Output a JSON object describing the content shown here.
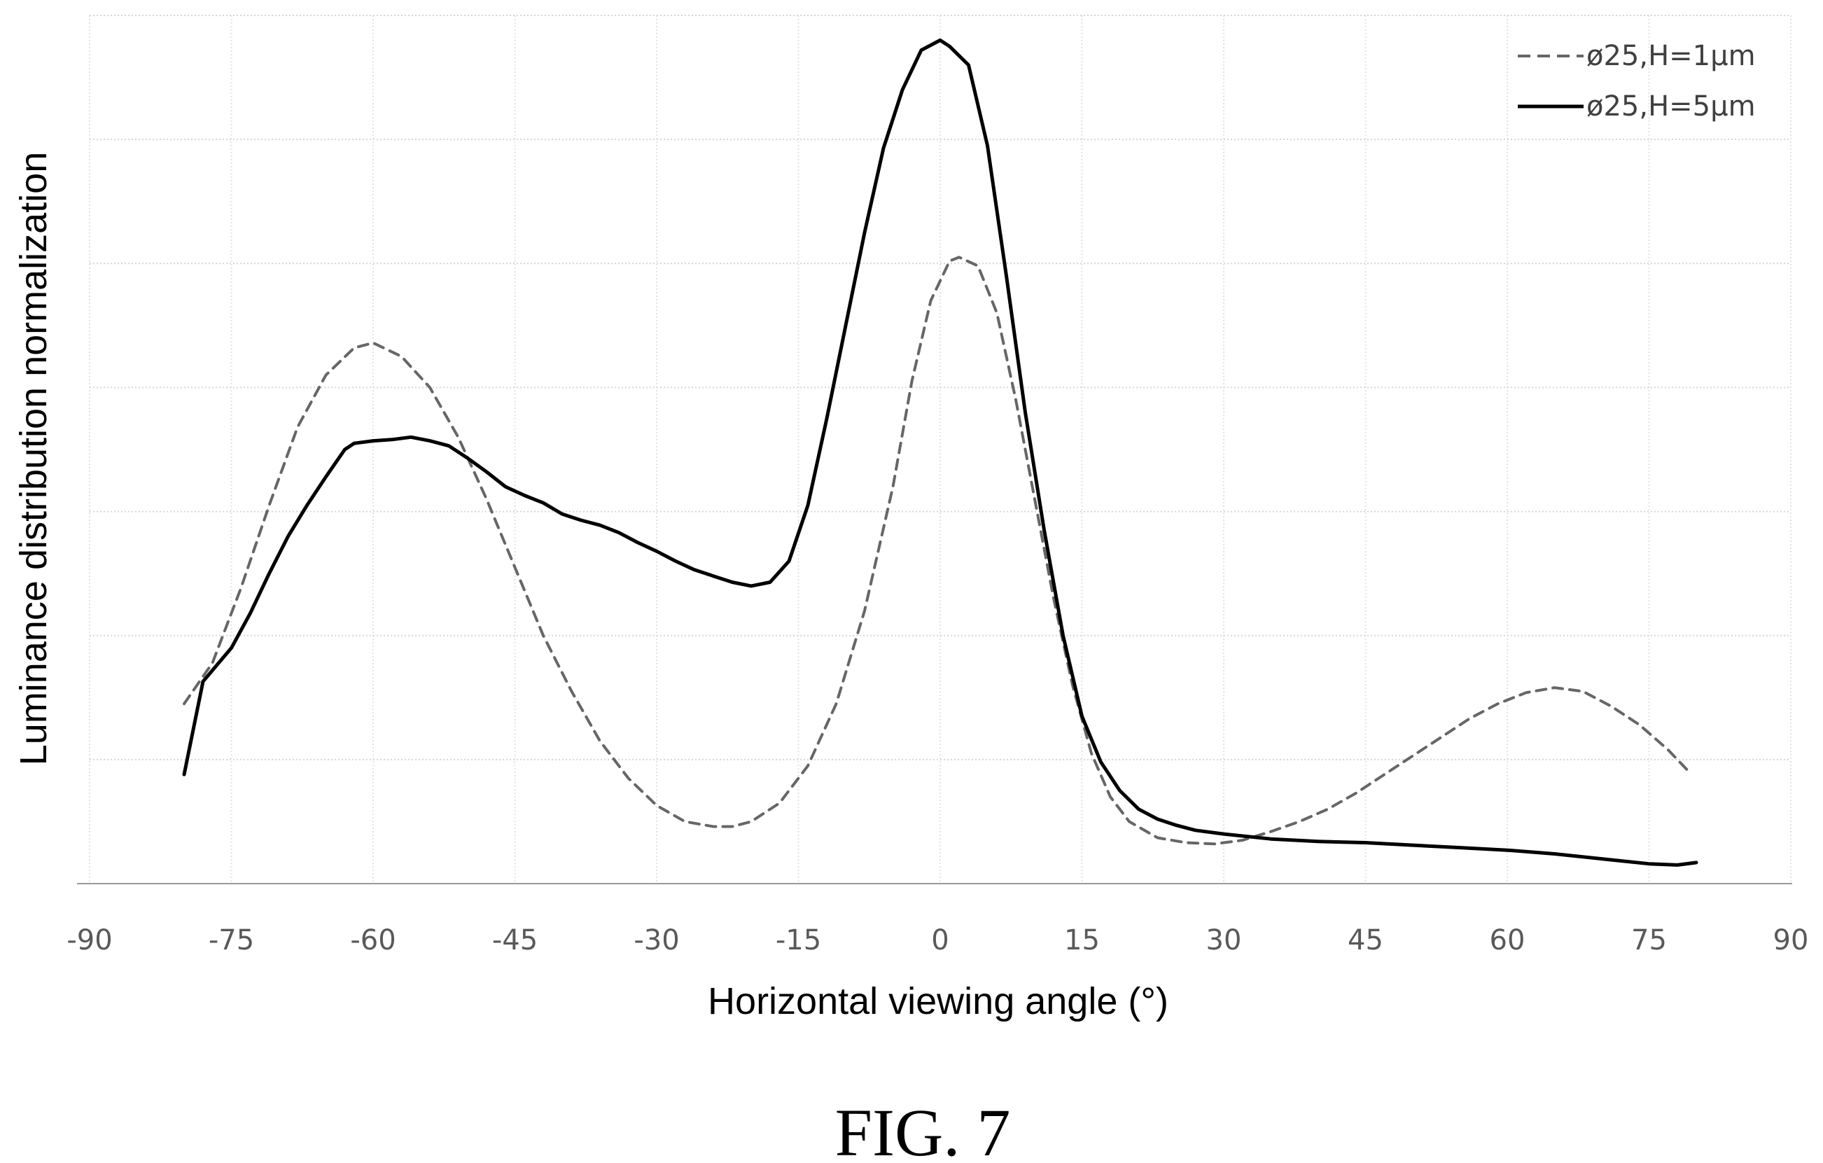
{
  "figure": {
    "caption": "FIG. 7"
  },
  "chart_data": {
    "type": "line",
    "title": "",
    "xlabel": "Horizontal viewing angle (°)",
    "ylabel": "Luminance distribution normalization",
    "xlim": [
      -90,
      90
    ],
    "ylim": [
      0,
      7
    ],
    "xticks": [
      -90,
      -75,
      -60,
      -45,
      -30,
      -15,
      0,
      15,
      30,
      45,
      60,
      75,
      90
    ],
    "xtick_labels": [
      "-90",
      "-75",
      "-60",
      "-45",
      "-30",
      "-15",
      "0",
      "15",
      "30",
      "45",
      "60",
      "75",
      "90"
    ],
    "y_tick_labels_shown": false,
    "grid": true,
    "legend_position": "top-right",
    "series": [
      {
        "name": "ø25,H=1μm",
        "style": "dashed",
        "color": "#666666",
        "x": [
          -80,
          -77,
          -74,
          -71,
          -68,
          -65,
          -62,
          -60,
          -57,
          -54,
          -51,
          -48,
          -45,
          -42,
          -39,
          -36,
          -33,
          -30,
          -27,
          -24,
          -22,
          -20,
          -17,
          -14,
          -11,
          -8,
          -5,
          -3,
          -1,
          1,
          2,
          4,
          6,
          8,
          10,
          12,
          14,
          16,
          18,
          20,
          23,
          26,
          29,
          32,
          35,
          38,
          41,
          44,
          47,
          50,
          53,
          56,
          59,
          62,
          65,
          68,
          71,
          74,
          77,
          79
        ],
        "y": [
          1.45,
          1.78,
          2.38,
          3.05,
          3.68,
          4.1,
          4.32,
          4.36,
          4.25,
          4.0,
          3.6,
          3.1,
          2.55,
          2.0,
          1.55,
          1.15,
          0.85,
          0.63,
          0.5,
          0.46,
          0.46,
          0.5,
          0.65,
          0.95,
          1.45,
          2.2,
          3.2,
          4.05,
          4.7,
          5.02,
          5.05,
          4.98,
          4.6,
          3.9,
          3.1,
          2.3,
          1.6,
          1.05,
          0.7,
          0.5,
          0.37,
          0.33,
          0.32,
          0.35,
          0.42,
          0.5,
          0.6,
          0.73,
          0.88,
          1.03,
          1.18,
          1.33,
          1.45,
          1.54,
          1.58,
          1.55,
          1.43,
          1.28,
          1.08,
          0.92
        ]
      },
      {
        "name": "ø25,H=5μm",
        "style": "solid",
        "color": "#000000",
        "x": [
          -80,
          -78,
          -75,
          -73,
          -71,
          -69,
          -67,
          -65,
          -63,
          -62,
          -60,
          -58,
          -56,
          -54,
          -52,
          -50,
          -48,
          -46,
          -44,
          -42,
          -40,
          -38,
          -36,
          -34,
          -32,
          -30,
          -28,
          -26,
          -24,
          -22,
          -20,
          -18,
          -16,
          -14,
          -12,
          -10,
          -8,
          -6,
          -4,
          -2,
          0,
          1,
          3,
          5,
          7,
          9,
          11,
          13,
          15,
          17,
          19,
          21,
          23,
          25,
          27,
          30,
          35,
          40,
          45,
          50,
          55,
          60,
          65,
          70,
          75,
          78,
          80
        ],
        "y": [
          0.88,
          1.63,
          1.9,
          2.18,
          2.5,
          2.8,
          3.05,
          3.28,
          3.5,
          3.55,
          3.57,
          3.58,
          3.6,
          3.57,
          3.53,
          3.43,
          3.32,
          3.2,
          3.13,
          3.07,
          2.98,
          2.93,
          2.89,
          2.83,
          2.75,
          2.68,
          2.6,
          2.53,
          2.48,
          2.43,
          2.4,
          2.43,
          2.6,
          3.05,
          3.75,
          4.5,
          5.25,
          5.93,
          6.4,
          6.72,
          6.8,
          6.75,
          6.6,
          5.95,
          4.9,
          3.8,
          2.85,
          2.0,
          1.35,
          0.98,
          0.75,
          0.6,
          0.52,
          0.47,
          0.43,
          0.4,
          0.36,
          0.34,
          0.33,
          0.31,
          0.29,
          0.27,
          0.24,
          0.2,
          0.16,
          0.15,
          0.17
        ]
      }
    ]
  }
}
